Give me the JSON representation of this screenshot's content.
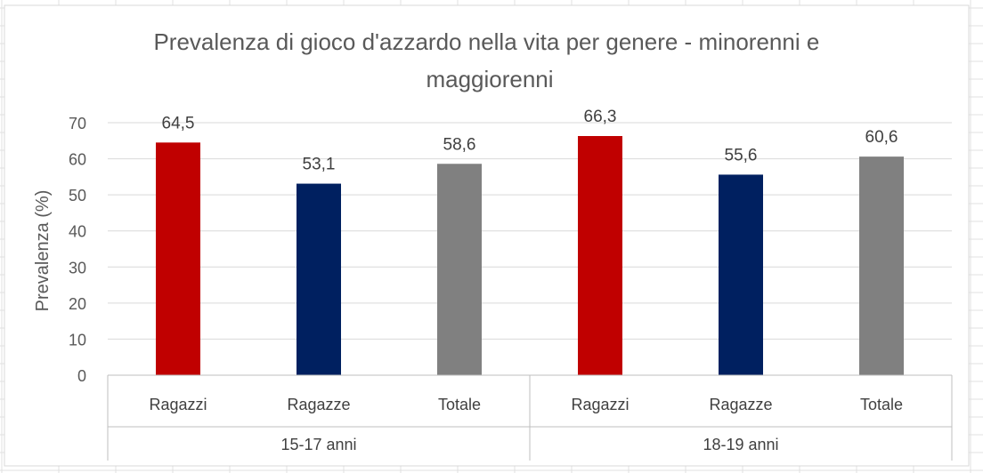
{
  "chart_data": {
    "type": "bar",
    "title": "Prevalenza di gioco d'azzardo nella vita per genere - minorenni e maggiorenni",
    "title_lines": [
      "Prevalenza di gioco d'azzardo nella vita per genere - minorenni e",
      "maggiorenni"
    ],
    "xlabel": "",
    "ylabel": "Prevalenza (%)",
    "ylim": [
      0,
      70
    ],
    "yticks": [
      0,
      10,
      20,
      30,
      40,
      50,
      60,
      70
    ],
    "grid": true,
    "legend": "none",
    "groups": [
      {
        "label": "15-17 anni",
        "bars": [
          {
            "label": "Ragazzi",
            "value": 64.5,
            "value_label": "64,5",
            "color": "#C00000"
          },
          {
            "label": "Ragazze",
            "value": 53.1,
            "value_label": "53,1",
            "color": "#002060"
          },
          {
            "label": "Totale",
            "value": 58.6,
            "value_label": "58,6",
            "color": "#808080"
          }
        ]
      },
      {
        "label": "18-19 anni",
        "bars": [
          {
            "label": "Ragazzi",
            "value": 66.3,
            "value_label": "66,3",
            "color": "#C00000"
          },
          {
            "label": "Ragazze",
            "value": 55.6,
            "value_label": "55,6",
            "color": "#002060"
          },
          {
            "label": "Totale",
            "value": 60.6,
            "value_label": "60,6",
            "color": "#808080"
          }
        ]
      }
    ]
  }
}
